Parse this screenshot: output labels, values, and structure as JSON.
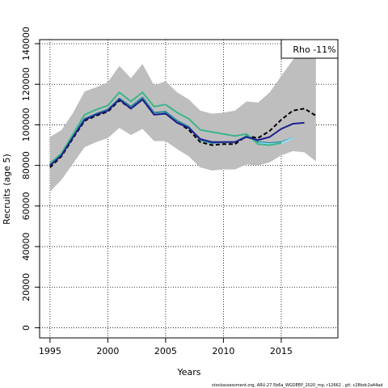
{
  "chart_data": {
    "type": "line",
    "xlabel": "Years",
    "ylabel": "Recruits (age 5)",
    "xlim": [
      1994.1,
      2019.9
    ],
    "ylim": [
      -5000,
      142000
    ],
    "x_ticks": [
      1995,
      2000,
      2005,
      2010,
      2015
    ],
    "x_tick_labels": [
      "1995",
      "2000",
      "2005",
      "2010",
      "2015"
    ],
    "y_ticks": [
      0,
      20000,
      40000,
      60000,
      80000,
      100000,
      120000,
      140000
    ],
    "y_tick_labels": [
      "0",
      "20000",
      "40000",
      "60000",
      "80000",
      "100000",
      "120000",
      "140000"
    ],
    "grid": true,
    "legend_text": "Rho -11%",
    "legend_position": "top-right",
    "confidence_band": {
      "x": [
        1995,
        1996,
        1997,
        1998,
        1999,
        2000,
        2001,
        2002,
        2003,
        2004,
        2005,
        2006,
        2007,
        2008,
        2009,
        2010,
        2011,
        2012,
        2013,
        2014,
        2015,
        2016,
        2017,
        2018
      ],
      "lower": [
        67000,
        73000,
        81000,
        89000,
        91500,
        93500,
        98500,
        95000,
        98000,
        92000,
        92000,
        88000,
        84500,
        79000,
        77500,
        78000,
        78000,
        80500,
        80000,
        81500,
        85000,
        87000,
        86500,
        82000
      ],
      "upper": [
        94000,
        97500,
        106000,
        116500,
        118500,
        121000,
        129000,
        123000,
        130000,
        119500,
        121500,
        116000,
        112500,
        107000,
        105500,
        106000,
        107000,
        111500,
        111000,
        116000,
        124000,
        132000,
        137000,
        137000
      ],
      "color": "#bebebe"
    },
    "series": [
      {
        "color": "#000000",
        "style": "dashed",
        "x": [
          1995,
          1996,
          1997,
          1998,
          1999,
          2000,
          2001,
          2002,
          2003,
          2004,
          2005,
          2006,
          2007,
          2008,
          2009,
          2010,
          2011,
          2012,
          2013,
          2014,
          2015,
          2016,
          2017,
          2018
        ],
        "values": [
          79000,
          84500,
          93500,
          102000,
          104500,
          106500,
          112000,
          108000,
          112500,
          105000,
          105500,
          101500,
          97500,
          91500,
          90000,
          90500,
          90500,
          94500,
          93500,
          97000,
          102500,
          107000,
          108000,
          104500
        ]
      },
      {
        "color": "#2a8a9a",
        "style": "solid",
        "x": [
          1995,
          1996,
          1997,
          1998,
          1999,
          2000,
          2001,
          2002,
          2003,
          2004,
          2005,
          2006,
          2007,
          2008,
          2009,
          2010,
          2011,
          2012,
          2013,
          2014,
          2015,
          2016
        ],
        "values": [
          80000,
          85000,
          94500,
          103000,
          105500,
          107500,
          113000,
          109000,
          113500,
          106000,
          106500,
          102000,
          99000,
          92500,
          91000,
          91500,
          91500,
          94500,
          91500,
          91000,
          91500,
          93500
        ]
      },
      {
        "color": "#8fe3ff",
        "style": "solid",
        "x": [
          2013,
          2014,
          2015,
          2016
        ],
        "values": [
          91000,
          90500,
          91000,
          93500
        ]
      },
      {
        "color": "#3db58a",
        "style": "solid",
        "x": [
          1995,
          1996,
          1997,
          1998,
          1999,
          2000,
          2001,
          2002,
          2003,
          2004,
          2005,
          2006,
          2007,
          2008,
          2009,
          2010,
          2011,
          2012,
          2013,
          2014,
          2015
        ],
        "values": [
          81000,
          86000,
          95500,
          105000,
          107500,
          109500,
          116000,
          111500,
          116000,
          109000,
          110000,
          106000,
          103000,
          97500,
          96500,
          95500,
          94500,
          95500,
          90500,
          90000,
          91000
        ]
      },
      {
        "color": "#1f1f8f",
        "style": "solid",
        "x": [
          1995,
          1996,
          1997,
          1998,
          1999,
          2000,
          2001,
          2002,
          2003,
          2004,
          2005,
          2006,
          2007,
          2008,
          2009,
          2010,
          2011,
          2012,
          2013,
          2014,
          2015,
          2016,
          2017
        ],
        "values": [
          80000,
          85000,
          94000,
          102500,
          105000,
          107000,
          112500,
          108000,
          112500,
          105000,
          105500,
          101000,
          98500,
          93000,
          91500,
          91500,
          91500,
          94000,
          92500,
          94000,
          98000,
          100500,
          101000
        ]
      }
    ]
  },
  "footer_text": "stockassessment.org, ARU.27.5b6a_WGDEEP_2020_mp, r12662 , git: c28bdc2a44ad"
}
